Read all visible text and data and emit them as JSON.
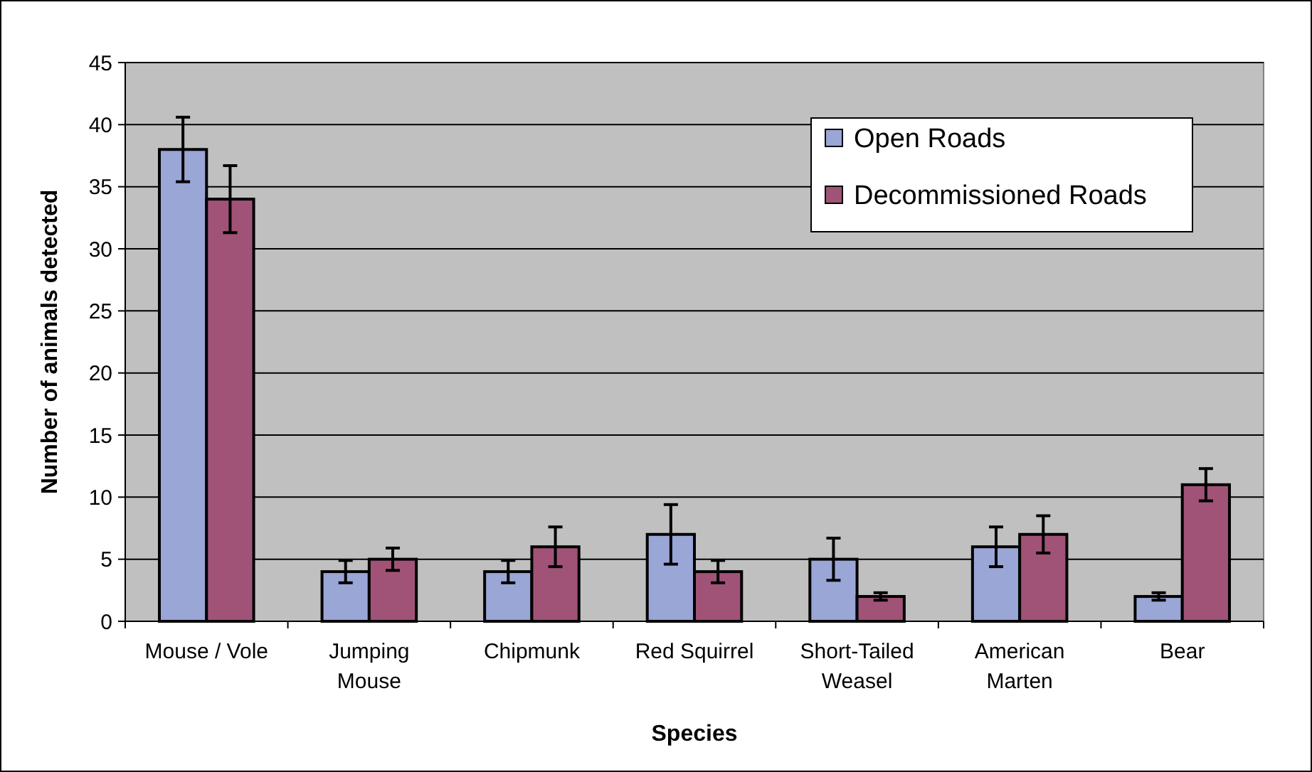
{
  "chart_data": {
    "type": "bar",
    "xlabel": "Species",
    "ylabel": "Number of animals detected",
    "categories": [
      "Mouse / Vole",
      "Jumping Mouse",
      "Chipmunk",
      "Red Squirrel",
      "Short-Tailed Weasel",
      "American Marten",
      "Bear"
    ],
    "series": [
      {
        "name": "Open Roads",
        "color": "#9aa6d6",
        "values": [
          38,
          4,
          4,
          7,
          5,
          6,
          2
        ],
        "errors": [
          2.6,
          0.9,
          0.9,
          2.4,
          1.7,
          1.6,
          0.3
        ]
      },
      {
        "name": "Decommissioned Roads",
        "color": "#a05377",
        "values": [
          34,
          5,
          6,
          4,
          2,
          7,
          11
        ],
        "errors": [
          2.7,
          0.9,
          1.6,
          0.9,
          0.3,
          1.5,
          1.3
        ]
      }
    ],
    "ylim": [
      0,
      45
    ],
    "yticks": [
      0,
      5,
      10,
      15,
      20,
      25,
      30,
      35,
      40,
      45
    ],
    "grid": "y",
    "legend": "top right"
  }
}
